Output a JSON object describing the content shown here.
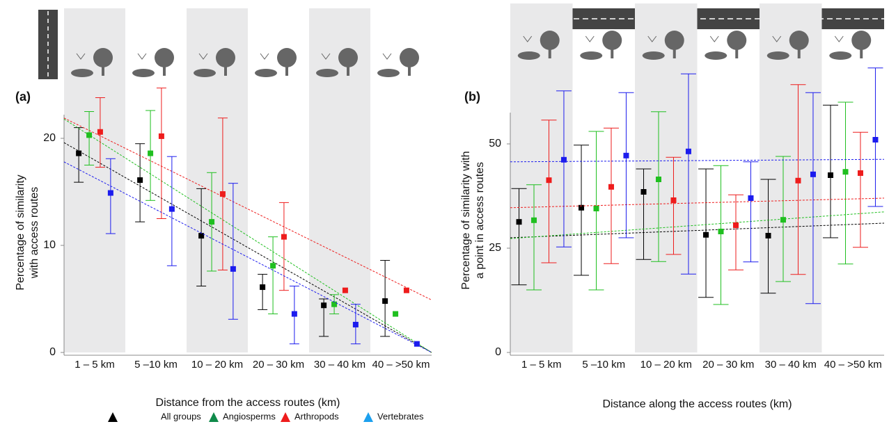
{
  "chart_data": [
    {
      "type": "errorbar",
      "label": "(a)",
      "ylabel": [
        "Percentage of similarity",
        "with access routes"
      ],
      "xlabel": "Distance from the access routes (km)",
      "categories": [
        "1 – 5 km",
        "5 –10 km",
        "10 – 20 km",
        "20 – 30 km",
        "30 – 40 km",
        "40 – >50 km"
      ],
      "ylim": [
        0,
        25
      ],
      "yticks": [
        0,
        10,
        20
      ],
      "series": [
        {
          "name": "All groups",
          "color": "#000000",
          "values": [
            18.6,
            16.1,
            10.9,
            6.1,
            4.4,
            4.8
          ],
          "lower": [
            15.9,
            12.2,
            6.2,
            4.0,
            1.5,
            1.5
          ],
          "upper": [
            21.0,
            19.5,
            15.3,
            7.3,
            5.0,
            8.6
          ],
          "trend": [
            19.6,
            0
          ]
        },
        {
          "name": "Angiosperms",
          "color": "#1fbf1f",
          "values": [
            20.3,
            18.6,
            12.2,
            8.1,
            4.5,
            3.6
          ],
          "lower": [
            17.5,
            14.2,
            7.6,
            3.6,
            3.6,
            null
          ],
          "upper": [
            22.5,
            22.6,
            16.8,
            10.8,
            5.4,
            null
          ],
          "trend": [
            21.8,
            0
          ]
        },
        {
          "name": "Arthropods",
          "color": "#ee1c1c",
          "values": [
            20.6,
            20.2,
            14.8,
            10.8,
            5.8,
            5.8
          ],
          "lower": [
            17.3,
            12.5,
            7.7,
            5.8,
            null,
            null
          ],
          "upper": [
            23.8,
            24.7,
            21.9,
            14.0,
            null,
            null
          ],
          "trend": [
            21.9,
            4.9
          ]
        },
        {
          "name": "Vertebrates",
          "color": "#1c1cee",
          "values": [
            14.9,
            13.4,
            7.8,
            3.6,
            2.6,
            0.8
          ],
          "lower": [
            11.1,
            8.1,
            3.1,
            0.8,
            0.8,
            null
          ],
          "upper": [
            18.1,
            18.3,
            15.8,
            6.2,
            4.5,
            null
          ],
          "trend": [
            17.8,
            0
          ]
        }
      ]
    },
    {
      "type": "errorbar",
      "label": "(b)",
      "ylabel": [
        "Percentage of similarity with",
        "a point in access routes"
      ],
      "xlabel": "Distance along the access routes (km)",
      "categories": [
        "1 – 5 km",
        "5 –10 km",
        "10 – 20 km",
        "20 – 30 km",
        "30 – 40 km",
        "40 – >50 km"
      ],
      "ylim": [
        0,
        70
      ],
      "yticks": [
        0,
        25,
        50
      ],
      "series": [
        {
          "color": "#000000",
          "values": [
            31.3,
            34.7,
            38.5,
            28.2,
            28.0,
            42.5
          ],
          "lower": [
            16.2,
            18.5,
            22.3,
            13.2,
            14.2,
            27.5
          ],
          "upper": [
            39.3,
            49.7,
            44.0,
            44.0,
            41.5,
            59.3
          ],
          "trend": [
            27.5,
            31.0
          ]
        },
        {
          "color": "#1fbf1f",
          "values": [
            31.7,
            34.5,
            41.5,
            29.0,
            31.8,
            43.3
          ],
          "lower": [
            15.0,
            15.0,
            21.8,
            11.5,
            17.0,
            21.2
          ],
          "upper": [
            40.2,
            53.0,
            57.7,
            44.8,
            47.0,
            60.0
          ],
          "trend": [
            27.3,
            33.7
          ]
        },
        {
          "color": "#ee1c1c",
          "values": [
            41.3,
            39.7,
            36.5,
            30.5,
            41.2,
            43.0
          ],
          "lower": [
            21.5,
            21.3,
            23.5,
            19.8,
            18.7,
            25.2
          ],
          "upper": [
            55.7,
            53.8,
            46.8,
            37.8,
            64.2,
            52.8
          ],
          "trend": [
            34.7,
            37.0
          ]
        },
        {
          "color": "#1c1cee",
          "values": [
            46.2,
            47.2,
            48.2,
            37.0,
            42.7,
            51.0
          ],
          "lower": [
            25.3,
            27.5,
            18.8,
            21.7,
            11.7,
            35.0
          ],
          "upper": [
            62.7,
            62.3,
            66.8,
            45.7,
            62.3,
            68.2
          ],
          "trend": [
            45.7,
            46.3
          ]
        }
      ]
    }
  ]
}
